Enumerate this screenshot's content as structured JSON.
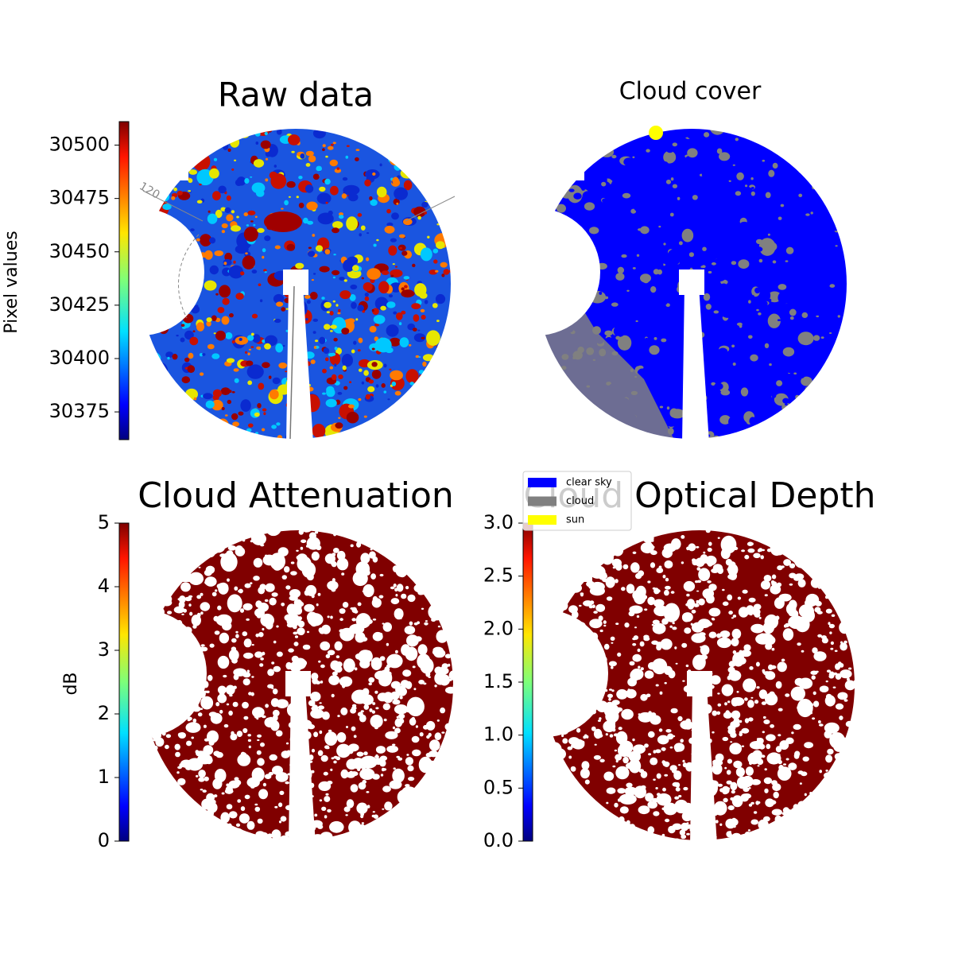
{
  "chart_data": [
    {
      "type": "image",
      "title": "Raw data",
      "colorbar_label": "Pixel values",
      "colormap": "jet",
      "ylim": [
        30362,
        30511
      ],
      "yticks": [
        30375,
        30400,
        30425,
        30450,
        30475,
        30500
      ],
      "annotation": "120"
    },
    {
      "type": "categorical-image",
      "title": "Cloud cover",
      "legend": [
        {
          "name": "clear sky",
          "color": "#0000ff"
        },
        {
          "name": "cloud",
          "color": "#808080"
        },
        {
          "name": "sun",
          "color": "#ffff00"
        }
      ]
    },
    {
      "type": "image",
      "title": "Cloud Attenuation",
      "colorbar_label": "dB",
      "colormap": "jet",
      "ylim": [
        0,
        5
      ],
      "yticks": [
        0,
        1,
        2,
        3,
        4,
        5
      ]
    },
    {
      "type": "image",
      "title": "Cloud Optical Depth",
      "colormap": "jet",
      "ylim": [
        0,
        3
      ],
      "yticks": [
        {
          "value": 0,
          "label": "0.0"
        },
        0.5,
        {
          "value": 1,
          "label": "1.0"
        },
        1.5,
        {
          "value": 2,
          "label": "2.0"
        },
        2.5,
        {
          "value": 3,
          "label": "3.0"
        }
      ]
    }
  ]
}
